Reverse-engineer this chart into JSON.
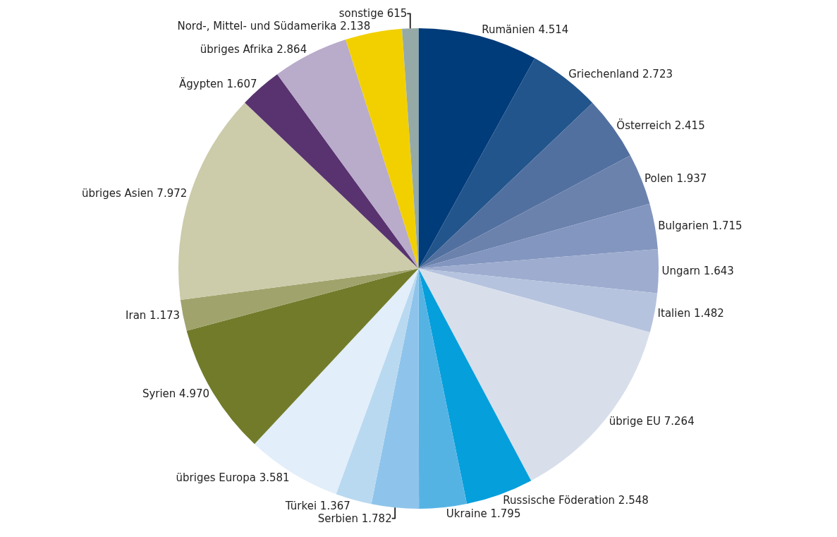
{
  "chart_data": {
    "type": "pie",
    "categories": [
      "Rumänien",
      "Griechenland",
      "Österreich",
      "Polen",
      "Bulgarien",
      "Ungarn",
      "Italien",
      "übrige EU",
      "Russische Föderation",
      "Ukraine",
      "Serbien",
      "Türkei",
      "übriges Europa",
      "Syrien",
      "Iran",
      "übriges Asien",
      "Ägypten",
      "übriges Afrika",
      "Nord-, Mittel- und Südamerika",
      "sonstige"
    ],
    "values": [
      4514,
      2723,
      2415,
      1937,
      1715,
      1643,
      1482,
      7264,
      2548,
      1795,
      1782,
      1367,
      3581,
      4970,
      1173,
      7972,
      1607,
      2864,
      2138,
      615
    ],
    "value_labels": [
      "4.514",
      "2.723",
      "2.415",
      "1.937",
      "1.715",
      "1.643",
      "1.482",
      "7.264",
      "2.548",
      "1.795",
      "1.782",
      "1.367",
      "3.581",
      "4.970",
      "1.173",
      "7.972",
      "1.607",
      "2.864",
      "2.138",
      "615"
    ],
    "colors": [
      "#003b7a",
      "#22558c",
      "#52709f",
      "#6b82ad",
      "#8396bf",
      "#9daccf",
      "#b6c3de",
      "#d8dfeb",
      "#059fdc",
      "#55b3e4",
      "#8ec4eb",
      "#b9d9f1",
      "#e2eef9",
      "#717b2a",
      "#a0a36b",
      "#cccbaa",
      "#58336f",
      "#b9abca",
      "#f2d000",
      "#95aaa6"
    ],
    "legend": false
  }
}
